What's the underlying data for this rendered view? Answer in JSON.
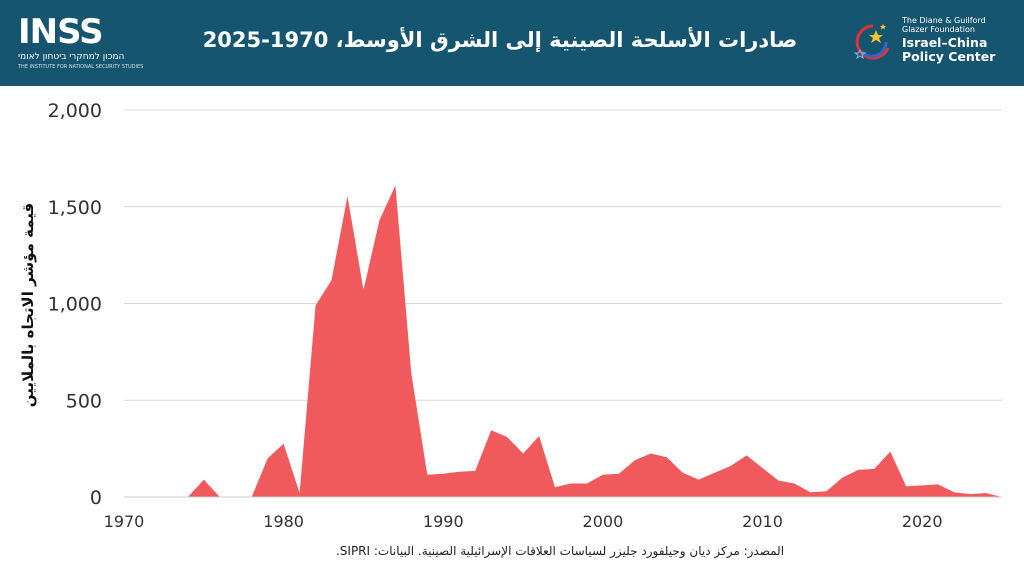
{
  "header": {
    "title": "صادرات الأسلحة الصينية إلى الشرق الأوسط، 1970-2025",
    "background": "#155570",
    "left_logo": {
      "word": "INSS",
      "hebrew": "המכון למחקרי ביטחון לאומי",
      "english": "THE INSTITUTE FOR NATIONAL SECURITY STUDIES"
    },
    "right_logo": {
      "line1": "The Diane & Guilford",
      "line2": "Glazer Foundation",
      "line3": "Israel–China",
      "line4": "Policy Center"
    }
  },
  "source_note": "المصدر: مركز ديان وجيلفورد جليزر لسياسات العلاقات الإسرائيلية الصينية. البيانات: SIPRI.",
  "chart_data": {
    "type": "area",
    "title": "صادرات الأسلحة الصينية إلى الشرق الأوسط، 1970-2025",
    "ylabel": "قيمة مؤشر الاتجاه بالملايين",
    "xlabel": "",
    "xlim": [
      1970,
      2025
    ],
    "ylim": [
      0,
      2000
    ],
    "yticks": [
      0,
      500,
      1000,
      1500,
      2000
    ],
    "ytick_labels": [
      "0",
      "500",
      "1,000",
      "1,500",
      "2,000"
    ],
    "xticks": [
      1970,
      1980,
      1990,
      2000,
      2010,
      2020
    ],
    "grid": "horizontal",
    "color": "#f15a5c",
    "x": [
      1970,
      1971,
      1972,
      1973,
      1974,
      1975,
      1976,
      1977,
      1978,
      1979,
      1980,
      1981,
      1982,
      1983,
      1984,
      1985,
      1986,
      1987,
      1988,
      1989,
      1990,
      1991,
      1992,
      1993,
      1994,
      1995,
      1996,
      1997,
      1998,
      1999,
      2000,
      2001,
      2002,
      2003,
      2004,
      2005,
      2006,
      2007,
      2008,
      2009,
      2010,
      2011,
      2012,
      2013,
      2014,
      2015,
      2016,
      2017,
      2018,
      2019,
      2020,
      2021,
      2022,
      2023,
      2024,
      2025
    ],
    "values": [
      0,
      0,
      0,
      0,
      0,
      90,
      0,
      0,
      0,
      200,
      275,
      20,
      990,
      1120,
      1555,
      1070,
      1430,
      1610,
      640,
      115,
      120,
      130,
      135,
      345,
      310,
      225,
      315,
      50,
      70,
      70,
      115,
      120,
      190,
      225,
      205,
      125,
      90,
      125,
      160,
      215,
      150,
      85,
      70,
      25,
      30,
      100,
      140,
      145,
      235,
      55,
      60,
      65,
      25,
      15,
      20,
      0
    ]
  }
}
